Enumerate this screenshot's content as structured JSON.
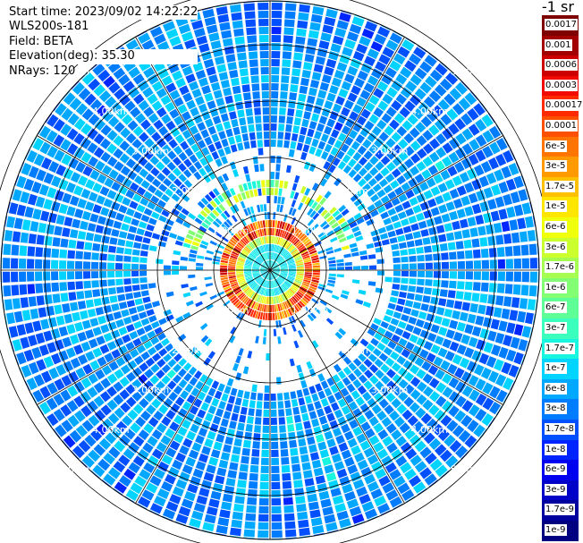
{
  "info": {
    "start_time": "Start time: 2023/09/02 14:22:22",
    "instrument": "WLS200s-181",
    "field": "Field: BETA",
    "elevation": "Elevation(deg): 35.30",
    "nrays": "NRays: 120"
  },
  "plot": {
    "range_labels": [
      "1.00km",
      "2.00km",
      "3.00km",
      "4.00km",
      "5.00km"
    ],
    "rays": 120
  },
  "colorbar": {
    "unit_label": "-1 sr",
    "labels": [
      "0.0017",
      "0.001",
      "0.0006",
      "0.0003",
      "0.00017",
      "0.0001",
      "6e-5",
      "3e-5",
      "1.7e-5",
      "1e-5",
      "6e-6",
      "3e-6",
      "1.7e-6",
      "1e-6",
      "6e-7",
      "3e-7",
      "1.7e-7",
      "1e-7",
      "6e-8",
      "3e-8",
      "1.7e-8",
      "1e-8",
      "6e-9",
      "3e-9",
      "1.7e-9",
      "1e-9"
    ],
    "colors": [
      "#7f0000",
      "#a30000",
      "#cc0000",
      "#f20a00",
      "#ff2a00",
      "#ff5000",
      "#ff7500",
      "#ff9a00",
      "#ffc000",
      "#ffe600",
      "#f0ff0c",
      "#cbff2d",
      "#a6ff50",
      "#83ff74",
      "#5fff98",
      "#3bffbd",
      "#18f6e0",
      "#00d4ff",
      "#00a8ff",
      "#007cff",
      "#0050ff",
      "#0024ff",
      "#0000f1",
      "#0000c8",
      "#00009f",
      "#000080"
    ]
  }
}
